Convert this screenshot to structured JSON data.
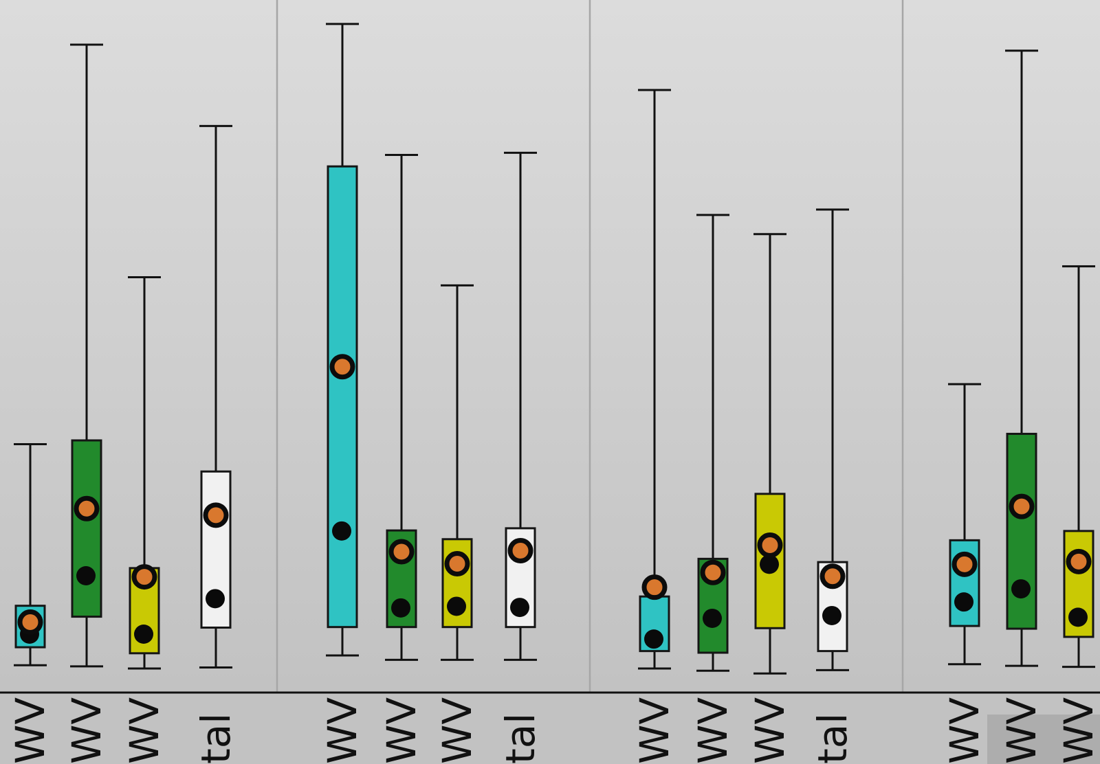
{
  "colors": {
    "cyan": "#2fc3c3",
    "green": "#228a2c",
    "yellow": "#c9c904",
    "white": "#f1f1f1",
    "mean_marker": "#d9782e",
    "median_marker": "#0a0a0a",
    "whisker": "#111111",
    "panel_divider": "#a6a6a6"
  },
  "chart_data": {
    "type": "box",
    "title": "",
    "xlabel": "",
    "ylabel": "",
    "grid": false,
    "legend": "none",
    "yaxis_visible": false,
    "note": "",
    "panels": [
      {
        "boxes": [
          {
            "label": "WV",
            "color": "cyan",
            "whisker_low": 5.0,
            "q1": 8.3,
            "median": 10.7,
            "mean": 12.9,
            "q3": 15.9,
            "whisker_high": 45.5
          },
          {
            "label": "WV",
            "color": "green",
            "whisker_low": 4.8,
            "q1": 13.9,
            "median": 21.4,
            "mean": 33.7,
            "q3": 46.2,
            "whisker_high": 118.7
          },
          {
            "label": "WV",
            "color": "yellow",
            "whisker_low": 4.4,
            "q1": 7.2,
            "median": 10.7,
            "mean": 21.2,
            "q3": 22.8,
            "whisker_high": 76.1
          },
          {
            "label": "tal",
            "color": "white",
            "whisker_low": 4.6,
            "q1": 11.9,
            "median": 17.2,
            "mean": 32.5,
            "q3": 40.5,
            "whisker_high": 103.8
          }
        ]
      },
      {
        "boxes": [
          {
            "label": "WV",
            "color": "cyan",
            "whisker_low": 6.8,
            "q1": 12.0,
            "median": 29.6,
            "mean": 59.7,
            "q3": 96.4,
            "whisker_high": 122.5
          },
          {
            "label": "WV",
            "color": "green",
            "whisker_low": 6.0,
            "q1": 12.0,
            "median": 15.5,
            "mean": 25.8,
            "q3": 29.7,
            "whisker_high": 98.5
          },
          {
            "label": "WV",
            "color": "yellow",
            "whisker_low": 6.0,
            "q1": 12.0,
            "median": 15.8,
            "mean": 23.6,
            "q3": 28.1,
            "whisker_high": 74.6
          },
          {
            "label": "tal",
            "color": "white",
            "whisker_low": 6.0,
            "q1": 12.0,
            "median": 15.6,
            "mean": 26.0,
            "q3": 30.1,
            "whisker_high": 98.9
          }
        ]
      },
      {
        "boxes": [
          {
            "label": "WV",
            "color": "cyan",
            "whisker_low": 4.4,
            "q1": 7.6,
            "median": 9.8,
            "mean": 19.3,
            "q3": 17.6,
            "whisker_high": 110.4
          },
          {
            "label": "WV",
            "color": "green",
            "whisker_low": 4.0,
            "q1": 7.3,
            "median": 13.6,
            "mean": 22.0,
            "q3": 24.5,
            "whisker_high": 87.5
          },
          {
            "label": "WV",
            "color": "yellow",
            "whisker_low": 3.5,
            "q1": 11.8,
            "median": 23.5,
            "mean": 27.0,
            "q3": 36.4,
            "whisker_high": 84.0
          },
          {
            "label": "tal",
            "color": "white",
            "whisker_low": 4.1,
            "q1": 7.6,
            "median": 14.1,
            "mean": 21.3,
            "q3": 23.9,
            "whisker_high": 88.5
          }
        ]
      },
      {
        "boxes": [
          {
            "label": "WV",
            "color": "cyan",
            "whisker_low": 5.2,
            "q1": 12.2,
            "median": 16.6,
            "mean": 23.5,
            "q3": 27.9,
            "whisker_high": 56.5
          },
          {
            "label": "WV",
            "color": "green",
            "whisker_low": 4.9,
            "q1": 11.7,
            "median": 19.0,
            "mean": 34.1,
            "q3": 47.4,
            "whisker_high": 117.6
          },
          {
            "label": "WV",
            "color": "yellow",
            "whisker_low": 4.7,
            "q1": 10.2,
            "median": 13.8,
            "mean": 24.0,
            "q3": 29.6,
            "whisker_high": 78.1
          }
        ]
      }
    ]
  }
}
